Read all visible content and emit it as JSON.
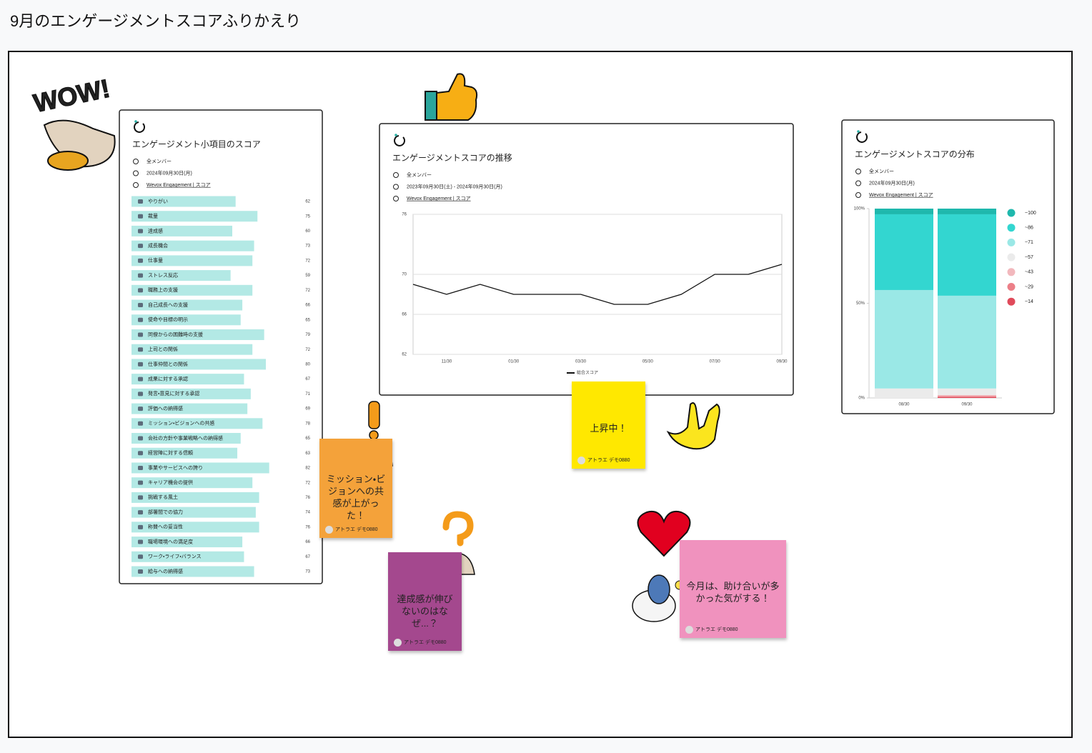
{
  "page_title": "9月のエンゲージメントスコアふりかえり",
  "sticker_text": "WOW!",
  "chart_data": [
    {
      "type": "bar",
      "orientation": "horizontal",
      "title": "エンゲージメント小項目のスコア",
      "meta": [
        "全メンバー",
        "2024年09月30日(月)",
        "Wevox Engagement | スコア"
      ],
      "categories": [
        "やりがい",
        "裁量",
        "達成感",
        "成長機会",
        "仕事量",
        "ストレス反応",
        "職務上の支援",
        "自己成長への支援",
        "使命や目標の明示",
        "同僚からの困難時の支援",
        "上司との関係",
        "仕事仲間との関係",
        "成果に対する承認",
        "発言・意見に対する承認",
        "評価への納得感",
        "ミッション・ビジョンへの共感",
        "会社の方針や事業戦略への納得感",
        "経営陣に対する信頼",
        "事業やサービスへの誇り",
        "キャリア機会の提供",
        "挑戦する風土",
        "部署間での協力",
        "称賛への妥当性",
        "職場環境への満足度",
        "ワーク・ライフ・バランス",
        "給与への納得感"
      ],
      "values": [
        62,
        75,
        60,
        73,
        72,
        59,
        72,
        66,
        65,
        79,
        72,
        80,
        67,
        71,
        69,
        78,
        65,
        63,
        82,
        72,
        76,
        74,
        76,
        66,
        67,
        73
      ],
      "color": "#b3e9e5",
      "xlim": [
        0,
        100
      ]
    },
    {
      "type": "line",
      "title": "エンゲージメントスコアの推移",
      "meta": [
        "全メンバー",
        "2023年09月30日(土) - 2024年09月30日(月)",
        "Wevox Engagement | スコア"
      ],
      "categories": [
        null,
        "11/30",
        null,
        "01/30",
        null,
        "03/30",
        null,
        "05/30",
        null,
        "07/30",
        null,
        "09/30"
      ],
      "series": [
        {
          "name": "総合スコア",
          "color": "#111111",
          "values": [
            69,
            68,
            69,
            68,
            68,
            68,
            67,
            67,
            68,
            70,
            70,
            71
          ]
        }
      ],
      "ylim": [
        62,
        76
      ],
      "yticks": [
        62,
        66,
        70,
        76
      ],
      "grid": true,
      "legend": "bottom"
    },
    {
      "type": "stacked_bar",
      "title": "エンゲージメントスコアの分布",
      "meta": [
        "全メンバー",
        "2024年09月30日(月)",
        "Wevox Engagement | スコア"
      ],
      "categories": [
        "08/30",
        "09/30"
      ],
      "series": [
        {
          "name": "~14",
          "color": "#e04a5a",
          "values": [
            0,
            0.5
          ]
        },
        {
          "name": "~29",
          "color": "#ec7f88",
          "values": [
            0,
            0.5
          ]
        },
        {
          "name": "~43",
          "color": "#f2b8bd",
          "values": [
            0,
            0.5
          ]
        },
        {
          "name": "~57",
          "color": "#ebebeb",
          "values": [
            5,
            3.5
          ]
        },
        {
          "name": "~71",
          "color": "#9ae8e6",
          "values": [
            52,
            49
          ]
        },
        {
          "name": "~86",
          "color": "#33d6d0",
          "values": [
            40,
            43
          ]
        },
        {
          "name": "~100",
          "color": "#1fb8ad",
          "values": [
            3,
            3
          ]
        }
      ],
      "ylim": [
        0,
        100
      ],
      "yticks": [
        {
          "value": 0,
          "label": "0%"
        },
        {
          "value": 50,
          "label": "50%"
        },
        {
          "value": 100,
          "label": "100%"
        }
      ],
      "legend": "right"
    }
  ],
  "sticky_notes": [
    {
      "text": "ミッション・ビジョンへの共感が上がった！",
      "author": "アトラエ デモ0880"
    },
    {
      "text": "上昇中！",
      "author": "アトラエ デモ0880"
    },
    {
      "text": "達成感が伸びないのはなぜ...？",
      "author": "アトラエ デモ0880"
    },
    {
      "text": "今月は、助け合いが多かった気がする！",
      "author": "アトラエ デモ0880"
    }
  ]
}
